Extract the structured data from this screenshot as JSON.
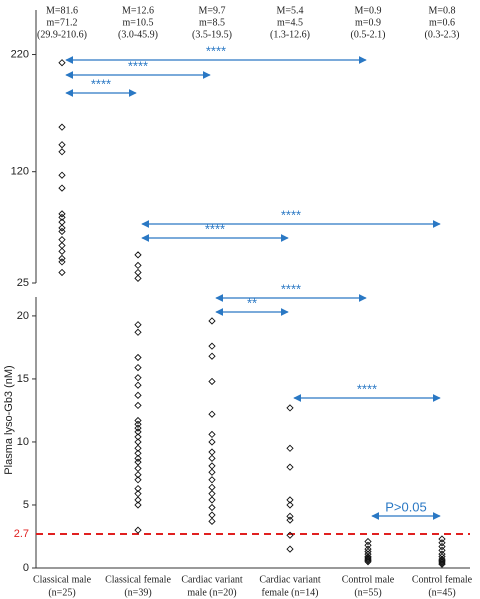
{
  "chart_data": {
    "type": "strip",
    "y_label": "Plasma lyso-Gb3 (nM)",
    "categories": [
      [
        "Classical male",
        "(n=25)"
      ],
      [
        "Classical female",
        "(n=39)"
      ],
      [
        "Cardiac variant",
        "male (n=20)"
      ],
      [
        "Cardiac variant",
        "female (n=14)"
      ],
      [
        "Control male",
        "(n=55)"
      ],
      [
        "Control female",
        "(n=45)"
      ]
    ],
    "stats": [
      [
        "M=81.6",
        "m=71.2",
        "(29.9-210.6)"
      ],
      [
        "M=12.6",
        "m=10.5",
        "(3.0-45.9)"
      ],
      [
        "M=9.7",
        "m=8.5",
        "(3.5-19.5)"
      ],
      [
        "M=5.4",
        "m=4.5",
        "(1.3-12.6)"
      ],
      [
        "M=0.9",
        "m=0.9",
        "(0.5-2.1)"
      ],
      [
        "M=0.8",
        "m=0.6",
        "(0.3-2.3)"
      ]
    ],
    "values": [
      [
        213,
        158,
        143,
        137,
        117,
        106,
        84,
        81,
        77,
        72,
        69,
        62,
        57,
        52,
        46,
        43,
        34
      ],
      [
        49,
        40,
        34,
        29,
        19.3,
        18.7,
        16.7,
        15.9,
        15.1,
        14.5,
        13.7,
        12.9,
        11.7,
        11.4,
        11.1,
        10.8,
        10.4,
        10,
        9.5,
        9.1,
        8.7,
        8.4,
        7.9,
        7.4,
        7.0,
        6.3,
        5.9,
        5.4,
        5.0,
        3.0
      ],
      [
        19.6,
        17.6,
        16.8,
        14.8,
        12.2,
        10.6,
        10,
        9.2,
        8.7,
        8.1,
        7.6,
        7.0,
        6.4,
        5.9,
        5.4,
        4.8,
        4.2,
        3.7
      ],
      [
        12.7,
        9.5,
        8.0,
        5.4,
        5.0,
        4.1,
        3.8,
        2.6,
        1.5
      ],
      [
        2.1,
        1.8,
        1.5,
        1.3,
        1.1,
        0.9,
        0.8,
        0.7,
        0.6,
        0.5
      ],
      [
        2.3,
        2.0,
        1.7,
        1.4,
        1.1,
        0.9,
        0.7,
        0.6,
        0.5,
        0.4,
        0.3
      ]
    ],
    "color": "#111111",
    "panels": [
      {
        "ylim": [
          0,
          21.5
        ],
        "yticks": [
          0,
          5,
          10,
          15,
          20
        ]
      },
      {
        "ylim": [
          25,
          258
        ],
        "yticks": [
          25,
          120,
          220
        ]
      }
    ],
    "reference_line": {
      "value": 2.7,
      "color": "#e02020"
    },
    "annotation_color": "#2a78c4",
    "annotations": [
      {
        "between": [
          0,
          4
        ],
        "label": "****"
      },
      {
        "between": [
          0,
          2
        ],
        "label": "****"
      },
      {
        "between": [
          0,
          1
        ],
        "label": "****"
      },
      {
        "between": [
          1,
          5
        ],
        "label": "****"
      },
      {
        "between": [
          1,
          3
        ],
        "label": "****"
      },
      {
        "between": [
          2,
          4
        ],
        "label": "****"
      },
      {
        "between": [
          2,
          3
        ],
        "label": "**"
      },
      {
        "between": [
          3,
          5
        ],
        "label": "****"
      },
      {
        "between": [
          4,
          5
        ],
        "label": "P>0.05"
      }
    ]
  }
}
